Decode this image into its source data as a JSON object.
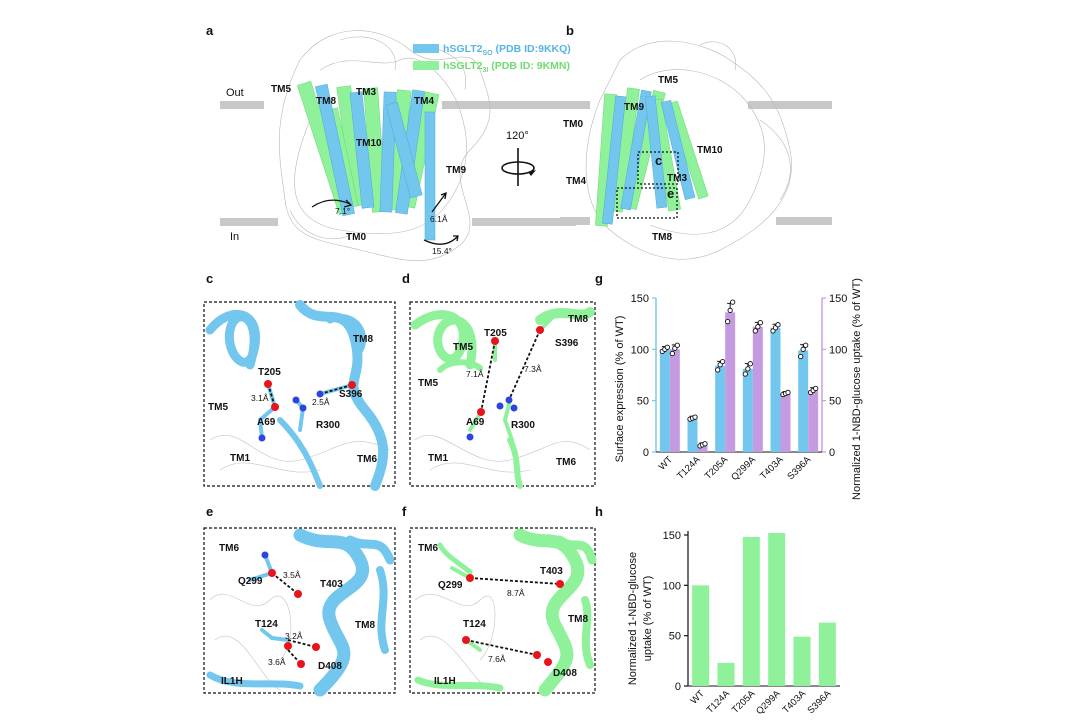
{
  "colors": {
    "blue": "#73c7ee",
    "green": "#8ff29a",
    "purple": "#c49be0",
    "membrane": "#c8c8c8",
    "oxygen": "#e8141b",
    "nitrogen": "#2c44e0",
    "legend_blue_text": "#56b5e6",
    "legend_green_text": "#6fdc6f"
  },
  "panel_labels": {
    "a": "a",
    "b": "b",
    "c": "c",
    "d": "d",
    "e": "e",
    "f": "f",
    "g": "g",
    "h": "h"
  },
  "legend": {
    "blue": {
      "main": "hSGLT2",
      "sub": "SO",
      "rest": " (PDB ID:9KKQ)"
    },
    "green": {
      "main": "hSGLT2",
      "sub": "3I",
      "rest": " (PDB ID: 9KMN)"
    }
  },
  "panel_a": {
    "out": "Out",
    "in": "In",
    "helices": [
      "TM5",
      "TM8",
      "TM3",
      "TM4",
      "TM10",
      "TM9",
      "TM0"
    ],
    "angles": [
      "7.1°",
      "6.1Å",
      "15.4°"
    ]
  },
  "rotation": "120°",
  "panel_b": {
    "helices": [
      "TM5",
      "TM9",
      "TM0",
      "TM10",
      "TM4",
      "TM3",
      "TM8"
    ],
    "box_c": "c",
    "box_e": "e"
  },
  "panel_c": {
    "labels": [
      "TM8",
      "T205",
      "TM5",
      "S396",
      "A69",
      "R300",
      "TM1",
      "TM6"
    ],
    "distances": [
      "3.1Å",
      "2.5Å"
    ]
  },
  "panel_d": {
    "labels": [
      "TM8",
      "T205",
      "S396",
      "TM5",
      "TM5",
      "A69",
      "R300",
      "TM1",
      "TM6"
    ],
    "distances": [
      "7.1Å",
      "7.3Å"
    ]
  },
  "panel_e": {
    "labels": [
      "TM6",
      "Q299",
      "T403",
      "T124",
      "TM8",
      "IL1H",
      "D408"
    ],
    "distances": [
      "3.5Å",
      "3.2Å",
      "3.6Å"
    ]
  },
  "panel_f": {
    "labels": [
      "TM6",
      "T403",
      "Q299",
      "T124",
      "TM8",
      "IL1H",
      "D408"
    ],
    "distances": [
      "8.7Å",
      "7.6Å"
    ]
  },
  "chart_data": [
    {
      "id": "g",
      "type": "bar",
      "categories": [
        "WT",
        "T124A",
        "T205A",
        "Q299A",
        "T403A",
        "S396A"
      ],
      "series": [
        {
          "name": "Surface expression (% of WT)",
          "axis": "left",
          "values": [
            100,
            33,
            84,
            81,
            121,
            99
          ],
          "points": [
            [
              98,
              100,
              102
            ],
            [
              32,
              33,
              34
            ],
            [
              80,
              85,
              88
            ],
            [
              76,
              81,
              86
            ],
            [
              118,
              121,
              124
            ],
            [
              93,
              100,
              104
            ]
          ]
        },
        {
          "name": "Normalized 1-NBD-glucose uptake (% of WT)",
          "axis": "right",
          "values": [
            100,
            7,
            136,
            122,
            57,
            60
          ],
          "points": [
            [
              96,
              101,
              104
            ],
            [
              6,
              7,
              8
            ],
            [
              127,
              138,
              146
            ],
            [
              118,
              122,
              126
            ],
            [
              56,
              57,
              58
            ],
            [
              58,
              60,
              62
            ]
          ]
        }
      ],
      "ylabel_left": "Surface expression (% of WT)",
      "ylabel_right": "Normalized 1-NBD-glucose uptake (% of WT)",
      "ylim": [
        0,
        150
      ],
      "yticks": [
        0,
        50,
        100,
        150
      ]
    },
    {
      "id": "h",
      "type": "bar",
      "categories": [
        "WT",
        "T124A",
        "T205A",
        "Q299A",
        "T403A",
        "S396A"
      ],
      "values": [
        100,
        23,
        148,
        152,
        49,
        63
      ],
      "ylabel_line1": "Normalized 1-NBD-glucose",
      "ylabel_line2": "uptake (% of WT)",
      "ylim": [
        0,
        150
      ],
      "yticks": [
        0,
        50,
        100,
        150
      ]
    }
  ]
}
